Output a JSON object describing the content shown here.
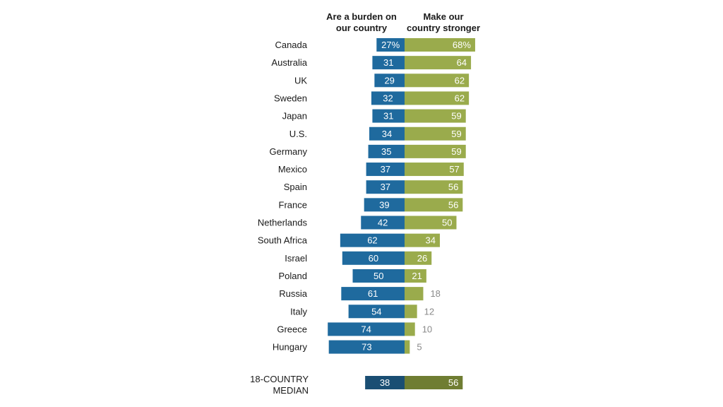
{
  "chart_data": {
    "type": "bar",
    "orientation": "diverging-horizontal",
    "series": [
      {
        "name": "Are a burden on our country",
        "name_lines": [
          "Are a burden on",
          "our country"
        ],
        "color": "#1f6a9e",
        "values": [
          27,
          31,
          29,
          32,
          31,
          34,
          35,
          37,
          37,
          39,
          42,
          62,
          60,
          50,
          61,
          54,
          74,
          73
        ]
      },
      {
        "name": "Make our country stronger",
        "name_lines": [
          "Make our",
          "country stronger"
        ],
        "color": "#9aab4c",
        "values": [
          68,
          64,
          62,
          62,
          59,
          59,
          59,
          57,
          56,
          56,
          50,
          34,
          26,
          21,
          18,
          12,
          10,
          5
        ]
      }
    ],
    "categories": [
      "Canada",
      "Australia",
      "UK",
      "Sweden",
      "Japan",
      "U.S.",
      "Germany",
      "Mexico",
      "Spain",
      "France",
      "Netherlands",
      "South Africa",
      "Israel",
      "Poland",
      "Russia",
      "Italy",
      "Greece",
      "Hungary"
    ],
    "first_row_suffix": "%",
    "median": {
      "label_lines": [
        "18-COUNTRY",
        "MEDIAN"
      ],
      "values": [
        38,
        56
      ],
      "colors": [
        "#1a4e73",
        "#6f7d32"
      ]
    }
  }
}
